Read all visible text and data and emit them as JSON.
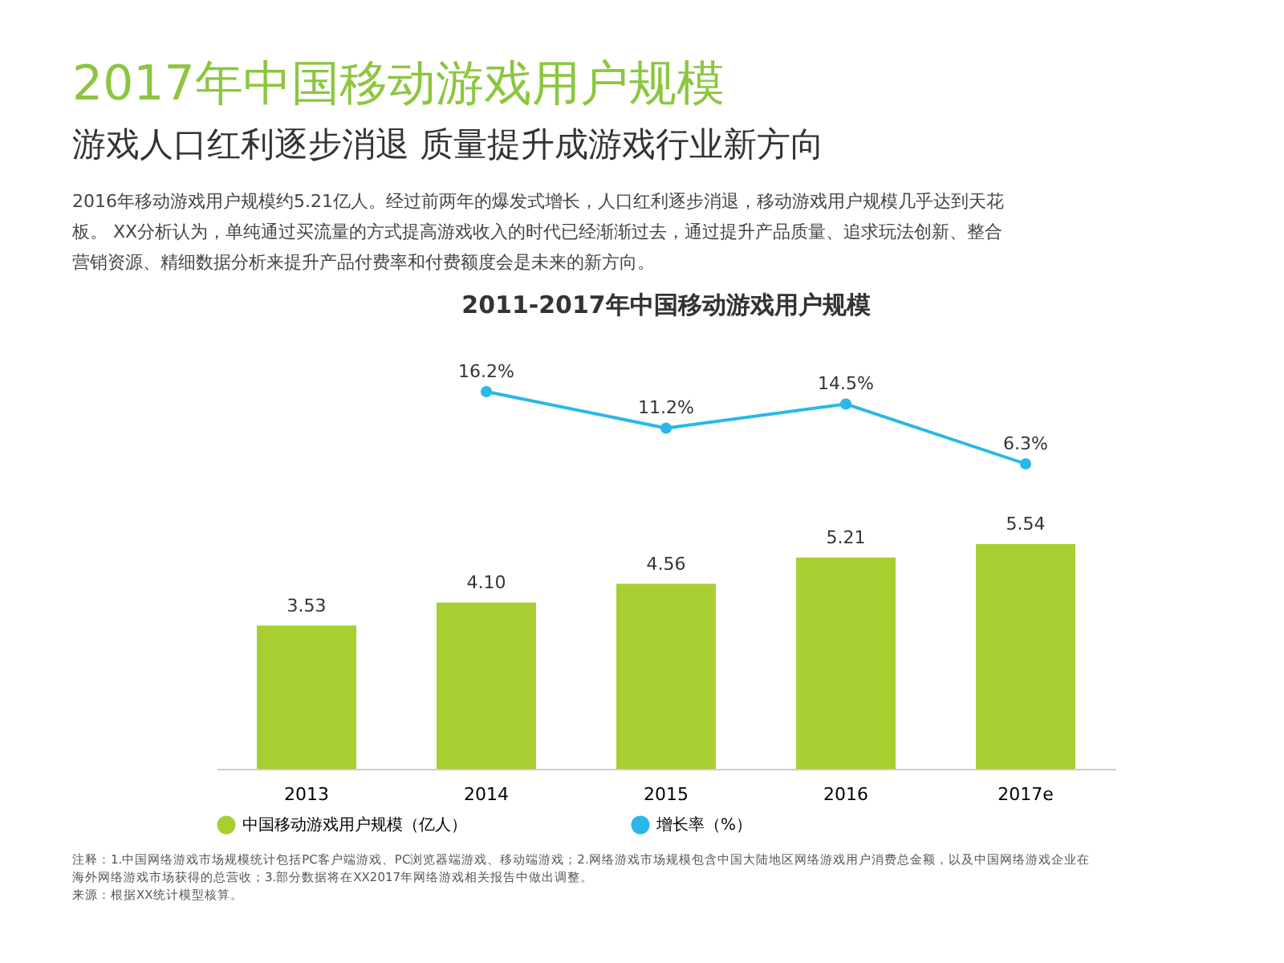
{
  "chart_data": [
    {
      "type": "line",
      "title": "2011-2017年中国移动游戏用户规模",
      "categories": [
        null,
        null,
        null,
        null,
        null
      ],
      "tick_labels": false,
      "grid": false,
      "legend": "bottom",
      "marker": "circle",
      "series": [
        {
          "name": "增长率（%）",
          "color": "#29b8e8",
          "values": [
            null,
            16.2,
            11.2,
            14.5,
            6.3
          ],
          "value_labels": [
            null,
            "16.2%",
            "11.2%",
            "14.5%",
            "6.3%"
          ]
        }
      ],
      "annotations": [
        "2017年中国移动游戏用户规模",
        "游戏人口红利逐步消退 质量提升成游戏行业新方向",
        "2016年移动游戏用户规模约5.21亿人。经过前两年的爆发式增长，人口红利逐步消退，移动游戏用户规模几乎达到天花",
        "板。 XX分析认为，单纯通过买流量的方式提高游戏收入的时代已经渐渐过去，通过提升产品质量、追求玩法创新、整合",
        "营销资源、精细数据分析来提升产品付费率和付费额度会是未来的新方向。",
        "注释：1.中国网络游戏市场规模统计包括PC客户端游戏、PC浏览器端游戏、移动端游戏；2.网络游戏市场规模包含中国大陆地区网络游戏用户消费总金额，以及中国网络游戏企业在",
        "海外网络游戏市场获得的总营收；3.部分数据将在XX2017年网络游戏相关报告中做出调整。",
        "来源：根据XX统计模型核算。"
      ]
    },
    {
      "type": "bar",
      "categories": [
        "2013",
        "2014",
        "2015",
        "2016",
        "2017e"
      ],
      "tick_labels": "x",
      "grid": false,
      "legend": "bottom",
      "series": [
        {
          "name": "中国移动游戏用户规模（亿人）",
          "color": "#a8cf32",
          "values": [
            3.53,
            4.1,
            4.56,
            5.21,
            5.54
          ],
          "value_labels": [
            "3.53",
            "4.10",
            "4.56",
            "5.21",
            "5.54"
          ]
        }
      ]
    }
  ]
}
